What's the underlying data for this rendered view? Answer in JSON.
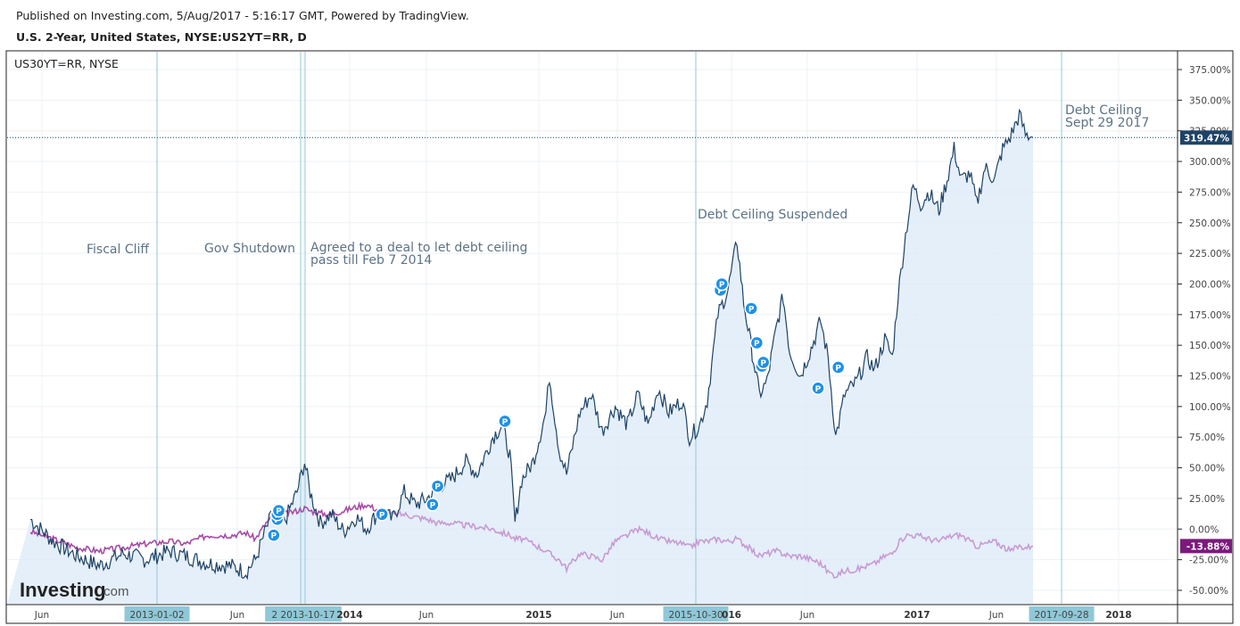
{
  "header": {
    "published": "Published on Investing.com, 5/Aug/2017 - 5:16:17 GMT, Powered by TradingView.",
    "title": "U.S. 2-Year, United States, NYSE:US2YT=RR, D"
  },
  "legend": {
    "compare_symbol": "US30YT=RR, NYSE"
  },
  "watermark": {
    "brand": "Investing",
    "suffix": ".com"
  },
  "colors": {
    "main_line": "#1d4366",
    "main_fill": "#dce9f8",
    "compare_line": "#a64ca6",
    "compare_line_faded": "#c79bd3",
    "event_line": "#8fc8d8",
    "price_tag_main": "#1d4366",
    "price_tag_compare": "#7b1a7b",
    "pin_badge": "#1e90e8",
    "axis_highlight": "#8fc8d8"
  },
  "chart_data": {
    "type": "line",
    "y_unit": "%",
    "ylim": [
      -60,
      385
    ],
    "y_ticks": [
      "375.00%",
      "350.00%",
      "325.00%",
      "300.00%",
      "275.00%",
      "250.00%",
      "225.00%",
      "200.00%",
      "175.00%",
      "150.00%",
      "125.00%",
      "100.00%",
      "75.00%",
      "50.00%",
      "25.00%",
      "0.00%",
      "-25.00%",
      "-50.00%"
    ],
    "x_ticks": [
      {
        "label": "Jun",
        "bold": false
      },
      {
        "label": "2013-01-02",
        "bold": false,
        "highlight": true
      },
      {
        "label": "Jun",
        "bold": false
      },
      {
        "label": "2 2013-10-17",
        "bold": false,
        "highlight": true
      },
      {
        "label": "2014",
        "bold": true
      },
      {
        "label": "Jun",
        "bold": false
      },
      {
        "label": "2015",
        "bold": true
      },
      {
        "label": "Jun",
        "bold": false
      },
      {
        "label": "2015-10-30",
        "bold": false,
        "highlight": true
      },
      {
        "label": "016",
        "bold": true
      },
      {
        "label": "Jun",
        "bold": false
      },
      {
        "label": "2017",
        "bold": true
      },
      {
        "label": "Jun",
        "bold": false
      },
      {
        "label": "2017-09-28",
        "bold": false,
        "highlight": true
      },
      {
        "label": "2018",
        "bold": true
      }
    ],
    "series": [
      {
        "name": "U.S. 2-Year",
        "last_value_label": "319.47%",
        "points": [
          [
            "2012-03-01",
            8
          ],
          [
            "2012-04-15",
            -10
          ],
          [
            "2012-06-01",
            -22
          ],
          [
            "2012-07-15",
            -30
          ],
          [
            "2012-09-01",
            -20
          ],
          [
            "2012-10-15",
            -25
          ],
          [
            "2012-12-01",
            -18
          ],
          [
            "2013-01-02",
            -22
          ],
          [
            "2013-02-15",
            -28
          ],
          [
            "2013-04-01",
            -30
          ],
          [
            "2013-05-01",
            -35
          ],
          [
            "2013-05-20",
            -25
          ],
          [
            "2013-06-10",
            0
          ],
          [
            "2013-06-25",
            15
          ],
          [
            "2013-07-15",
            5
          ],
          [
            "2013-08-10",
            30
          ],
          [
            "2013-08-25",
            55
          ],
          [
            "2013-09-05",
            30
          ],
          [
            "2013-09-25",
            5
          ],
          [
            "2013-10-17",
            12
          ],
          [
            "2013-11-10",
            -2
          ],
          [
            "2013-12-05",
            10
          ],
          [
            "2013-12-25",
            0
          ],
          [
            "2014-01-20",
            15
          ],
          [
            "2014-02-15",
            8
          ],
          [
            "2014-03-10",
            30
          ],
          [
            "2014-04-01",
            20
          ],
          [
            "2014-04-25",
            25
          ],
          [
            "2014-05-15",
            35
          ],
          [
            "2014-06-10",
            40
          ],
          [
            "2014-07-10",
            55
          ],
          [
            "2014-08-01",
            45
          ],
          [
            "2014-09-01",
            75
          ],
          [
            "2014-09-20",
            85
          ],
          [
            "2014-10-05",
            60
          ],
          [
            "2014-10-15",
            5
          ],
          [
            "2014-10-28",
            40
          ],
          [
            "2014-11-20",
            55
          ],
          [
            "2014-12-15",
            95
          ],
          [
            "2014-12-22",
            125
          ],
          [
            "2015-01-10",
            65
          ],
          [
            "2015-01-25",
            45
          ],
          [
            "2015-02-20",
            95
          ],
          [
            "2015-03-15",
            110
          ],
          [
            "2015-04-05",
            80
          ],
          [
            "2015-05-01",
            100
          ],
          [
            "2015-05-25",
            85
          ],
          [
            "2015-06-15",
            110
          ],
          [
            "2015-07-05",
            85
          ],
          [
            "2015-07-25",
            115
          ],
          [
            "2015-08-15",
            95
          ],
          [
            "2015-09-10",
            105
          ],
          [
            "2015-09-25",
            75
          ],
          [
            "2015-10-15",
            85
          ],
          [
            "2015-10-30",
            105
          ],
          [
            "2015-11-20",
            175
          ],
          [
            "2015-12-10",
            195
          ],
          [
            "2015-12-28",
            235
          ],
          [
            "2016-01-10",
            185
          ],
          [
            "2016-02-10",
            110
          ],
          [
            "2016-02-25",
            120
          ],
          [
            "2016-03-15",
            165
          ],
          [
            "2016-03-28",
            190
          ],
          [
            "2016-04-10",
            145
          ],
          [
            "2016-05-01",
            125
          ],
          [
            "2016-05-25",
            150
          ],
          [
            "2016-06-10",
            170
          ],
          [
            "2016-06-25",
            140
          ],
          [
            "2016-07-10",
            75
          ],
          [
            "2016-07-28",
            110
          ],
          [
            "2016-08-20",
            120
          ],
          [
            "2016-09-10",
            140
          ],
          [
            "2016-09-25",
            130
          ],
          [
            "2016-10-15",
            155
          ],
          [
            "2016-10-30",
            140
          ],
          [
            "2016-11-10",
            190
          ],
          [
            "2016-11-25",
            240
          ],
          [
            "2016-12-10",
            280
          ],
          [
            "2016-12-25",
            265
          ],
          [
            "2017-01-10",
            275
          ],
          [
            "2017-01-30",
            260
          ],
          [
            "2017-02-15",
            285
          ],
          [
            "2017-03-01",
            310
          ],
          [
            "2017-03-15",
            285
          ],
          [
            "2017-04-01",
            290
          ],
          [
            "2017-04-15",
            265
          ],
          [
            "2017-05-01",
            295
          ],
          [
            "2017-05-20",
            285
          ],
          [
            "2017-06-05",
            310
          ],
          [
            "2017-06-20",
            320
          ],
          [
            "2017-07-08",
            338
          ],
          [
            "2017-07-20",
            322
          ],
          [
            "2017-08-04",
            319.47
          ]
        ]
      },
      {
        "name": "US30YT=RR",
        "last_value_label": "-13.88%",
        "points": [
          [
            "2012-03-01",
            -2
          ],
          [
            "2012-04-15",
            -8
          ],
          [
            "2012-06-01",
            -15
          ],
          [
            "2012-07-15",
            -18
          ],
          [
            "2012-09-01",
            -15
          ],
          [
            "2012-10-15",
            -12
          ],
          [
            "2012-12-01",
            -10
          ],
          [
            "2013-01-02",
            -12
          ],
          [
            "2013-02-15",
            -5
          ],
          [
            "2013-04-01",
            -5
          ],
          [
            "2013-05-01",
            -3
          ],
          [
            "2013-05-20",
            -8
          ],
          [
            "2013-06-10",
            5
          ],
          [
            "2013-06-25",
            10
          ],
          [
            "2013-07-15",
            12
          ],
          [
            "2013-08-10",
            15
          ],
          [
            "2013-08-25",
            17
          ],
          [
            "2013-09-05",
            15
          ],
          [
            "2013-09-25",
            13
          ],
          [
            "2013-10-17",
            12
          ],
          [
            "2013-11-10",
            15
          ],
          [
            "2013-12-05",
            18
          ],
          [
            "2013-12-25",
            20
          ],
          [
            "2014-01-20",
            15
          ],
          [
            "2014-02-15",
            12
          ],
          [
            "2014-03-10",
            12
          ],
          [
            "2014-04-01",
            10
          ],
          [
            "2014-04-25",
            8
          ],
          [
            "2014-05-15",
            5
          ],
          [
            "2014-06-10",
            5
          ],
          [
            "2014-07-10",
            3
          ],
          [
            "2014-08-01",
            2
          ],
          [
            "2014-09-01",
            0
          ],
          [
            "2014-09-20",
            -3
          ],
          [
            "2014-10-05",
            -5
          ],
          [
            "2014-10-15",
            -8
          ],
          [
            "2014-10-28",
            -8
          ],
          [
            "2014-11-20",
            -12
          ],
          [
            "2014-12-15",
            -18
          ],
          [
            "2014-12-22",
            -20
          ],
          [
            "2015-01-10",
            -25
          ],
          [
            "2015-01-25",
            -32
          ],
          [
            "2015-02-20",
            -20
          ],
          [
            "2015-03-15",
            -22
          ],
          [
            "2015-04-05",
            -25
          ],
          [
            "2015-05-01",
            -10
          ],
          [
            "2015-05-25",
            -5
          ],
          [
            "2015-06-15",
            0
          ],
          [
            "2015-07-05",
            -3
          ],
          [
            "2015-07-25",
            -8
          ],
          [
            "2015-08-15",
            -10
          ],
          [
            "2015-09-10",
            -12
          ],
          [
            "2015-09-25",
            -15
          ],
          [
            "2015-10-15",
            -10
          ],
          [
            "2015-10-30",
            -10
          ],
          [
            "2015-11-20",
            -8
          ],
          [
            "2015-12-10",
            -10
          ],
          [
            "2015-12-28",
            -8
          ],
          [
            "2016-01-10",
            -12
          ],
          [
            "2016-02-10",
            -22
          ],
          [
            "2016-02-25",
            -20
          ],
          [
            "2016-03-15",
            -18
          ],
          [
            "2016-03-28",
            -20
          ],
          [
            "2016-04-10",
            -22
          ],
          [
            "2016-05-01",
            -22
          ],
          [
            "2016-05-25",
            -25
          ],
          [
            "2016-06-10",
            -28
          ],
          [
            "2016-06-25",
            -35
          ],
          [
            "2016-07-10",
            -38
          ],
          [
            "2016-07-28",
            -34
          ],
          [
            "2016-08-20",
            -33
          ],
          [
            "2016-09-10",
            -30
          ],
          [
            "2016-09-25",
            -28
          ],
          [
            "2016-10-15",
            -22
          ],
          [
            "2016-10-30",
            -20
          ],
          [
            "2016-11-10",
            -12
          ],
          [
            "2016-11-25",
            -5
          ],
          [
            "2016-12-10",
            -5
          ],
          [
            "2016-12-25",
            -6
          ],
          [
            "2017-01-10",
            -8
          ],
          [
            "2017-01-30",
            -10
          ],
          [
            "2017-02-15",
            -7
          ],
          [
            "2017-03-01",
            -5
          ],
          [
            "2017-03-15",
            -5
          ],
          [
            "2017-04-01",
            -10
          ],
          [
            "2017-04-15",
            -14
          ],
          [
            "2017-05-01",
            -12
          ],
          [
            "2017-05-20",
            -10
          ],
          [
            "2017-06-05",
            -14
          ],
          [
            "2017-06-20",
            -18
          ],
          [
            "2017-07-08",
            -14
          ],
          [
            "2017-07-20",
            -15
          ],
          [
            "2017-08-04",
            -13.88
          ]
        ]
      }
    ],
    "event_lines": [
      "2013-01-02",
      "2013-10-17",
      "2013-10-17",
      "2015-10-30",
      "2017-09-28"
    ],
    "annotations": [
      {
        "lines": [
          "Fiscal Cliff"
        ]
      },
      {
        "lines": [
          "Gov Shutdown"
        ]
      },
      {
        "lines": [
          "Agreed to a deal to let debt ceiling",
          "pass till Feb 7 2014"
        ]
      },
      {
        "lines": [
          "Debt Ceiling Suspended"
        ]
      },
      {
        "lines": [
          "Debt Ceiling",
          "Sept 29 2017"
        ]
      }
    ],
    "pin_label": "P",
    "pins": [
      [
        "2013-06-25",
        -5
      ],
      [
        "2013-07-02",
        8
      ],
      [
        "2013-07-02",
        12
      ],
      [
        "2013-07-05",
        15
      ],
      [
        "2014-01-25",
        12
      ],
      [
        "2014-05-05",
        20
      ],
      [
        "2014-05-15",
        35
      ],
      [
        "2014-09-25",
        88
      ],
      [
        "2015-11-25",
        195
      ],
      [
        "2015-11-28",
        200
      ],
      [
        "2016-01-25",
        180
      ],
      [
        "2016-02-05",
        152
      ],
      [
        "2016-02-15",
        133
      ],
      [
        "2016-02-18",
        136
      ],
      [
        "2016-06-05",
        115
      ],
      [
        "2016-07-15",
        132
      ]
    ]
  }
}
